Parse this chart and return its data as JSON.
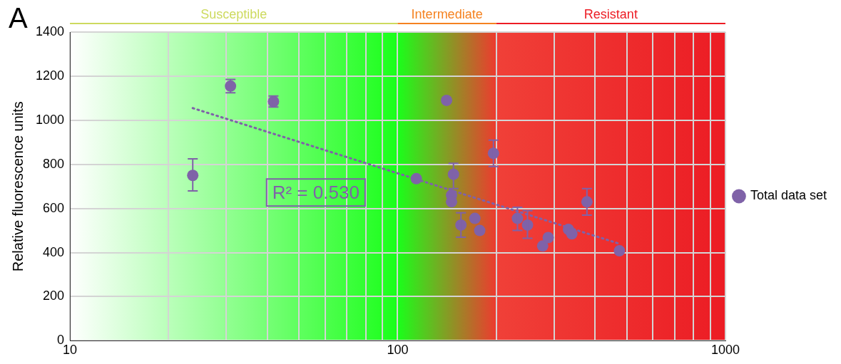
{
  "chart_data": {
    "type": "scatter",
    "ylabel": "Relative fluorescence units",
    "log": "x",
    "xlim": [
      10,
      1000
    ],
    "ylim": [
      0,
      1400
    ],
    "xticks": [
      10,
      {
        "value": 20,
        "label": null
      },
      {
        "value": 30,
        "label": null
      },
      {
        "value": 40,
        "label": null
      },
      {
        "value": 50,
        "label": null
      },
      {
        "value": 60,
        "label": null
      },
      {
        "value": 70,
        "label": null
      },
      {
        "value": 80,
        "label": null
      },
      {
        "value": 90,
        "label": null
      },
      100,
      {
        "value": 200,
        "label": null
      },
      {
        "value": 300,
        "label": null
      },
      {
        "value": 400,
        "label": null
      },
      {
        "value": 500,
        "label": null
      },
      {
        "value": 600,
        "label": null
      },
      {
        "value": 700,
        "label": null
      },
      {
        "value": 800,
        "label": null
      },
      {
        "value": 900,
        "label": null
      },
      1000
    ],
    "yticks": [
      0,
      200,
      400,
      600,
      800,
      1000,
      1200,
      1400
    ],
    "grid": true,
    "legend": "right",
    "marker": "circle",
    "series": [
      {
        "name": "Total data set",
        "color": "#7f62a8",
        "x": [
          23.7,
          30.9,
          41.8,
          141,
          114,
          148,
          146,
          146,
          156,
          172,
          178,
          196,
          232,
          249,
          277,
          288,
          332,
          340,
          378,
          475
        ],
        "values": [
          750,
          1155,
          1085,
          1090,
          735,
          755,
          660,
          630,
          525,
          555,
          500,
          850,
          555,
          525,
          430,
          468,
          505,
          485,
          630,
          408
        ],
        "errors": [
          [
            680,
            825
          ],
          [
            1125,
            1185
          ],
          [
            1060,
            1110
          ],
          null,
          null,
          [
            690,
            805
          ],
          null,
          null,
          [
            470,
            580
          ],
          null,
          null,
          [
            790,
            910
          ],
          [
            500,
            605
          ],
          [
            465,
            590
          ],
          null,
          null,
          null,
          null,
          [
            570,
            690
          ],
          null
        ]
      },
      {
        "type": "line",
        "color": "#7f62a8",
        "line_style": "dotted",
        "marker": "none",
        "x": [
          23.7,
          475
        ],
        "values": [
          1055,
          440
        ]
      }
    ],
    "bands": [
      {
        "axis": "x",
        "from": 10,
        "to": 100,
        "label": "Susceptible",
        "color": "#cdda5e"
      },
      {
        "axis": "x",
        "from": 100,
        "to": 200,
        "label": "Intermediate",
        "color": "#f58220"
      },
      {
        "axis": "x",
        "from": 200,
        "to": 1000,
        "label": "Resistant",
        "color": "#ed1c24"
      }
    ],
    "annotations": [
      "A",
      "R² = 0.530"
    ]
  }
}
